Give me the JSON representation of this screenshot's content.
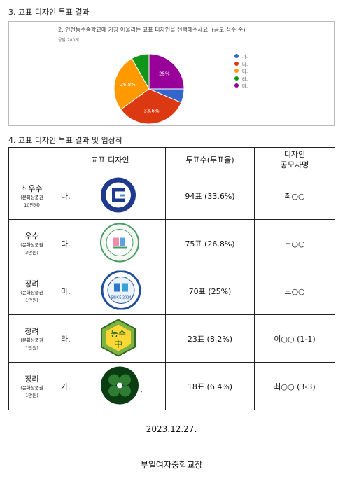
{
  "section1": {
    "title": "3. 교표 디자인 투표 결과"
  },
  "survey": {
    "question": "2. 인천동수중학교에 가장 어울리는 교표 디자인을 선택해주세요. (공모 접수 순)",
    "total": "응답 280개"
  },
  "chart_data": {
    "type": "pie",
    "title": "",
    "categories": [
      "가.",
      "나.",
      "다.",
      "라.",
      "마."
    ],
    "values": [
      6.4,
      33.6,
      26.8,
      8.2,
      25
    ],
    "data_labels": [
      "",
      "33.6%",
      "26.8%",
      "",
      "25%"
    ],
    "colors": [
      "#3366cc",
      "#dc3912",
      "#ff9900",
      "#109618",
      "#990099"
    ],
    "legend_position": "right"
  },
  "section2": {
    "title": "4. 교표 디자인 투표 결과 및 입상작"
  },
  "table": {
    "headers": [
      "",
      "교표 디자인",
      "투표수(투표율)",
      "디자인\n공모자명"
    ],
    "rows": [
      {
        "award": "최우수",
        "prize": "(문화상품권\n10만원)",
        "design": "나.",
        "votes": "94표 (33.6%)",
        "name": "최○○",
        "logo_icon": "blue-emblem-icon"
      },
      {
        "award": "우수",
        "prize": "(문화상품권\n3만원)",
        "design": "다.",
        "votes": "75표 (26.8%)",
        "name": "노○○",
        "logo_icon": "green-emblem-icon"
      },
      {
        "award": "장려",
        "prize": "(문화상품권\n1만원)",
        "design": "마.",
        "votes": "70표 (25%)",
        "name": "노○○",
        "logo_icon": "blue-seal-icon",
        "logo_text": "SINCE 2024"
      },
      {
        "award": "장려",
        "prize": "(문화상품권\n1만원)",
        "design": "라.",
        "votes": "23표 (8.2%)",
        "name": "이○○ (1-1)",
        "logo_icon": "hexagon-emblem-icon",
        "logo_text": "동수\n中"
      },
      {
        "award": "장려",
        "prize": "(문화상품권\n1만원)",
        "design": "가.",
        "votes": "18표 (6.4%)",
        "name": "최○○ (3-3)",
        "logo_icon": "clover-emblem-icon"
      }
    ]
  },
  "footer": {
    "date": "2023.12.27.",
    "school": "부일여자중학교장"
  }
}
